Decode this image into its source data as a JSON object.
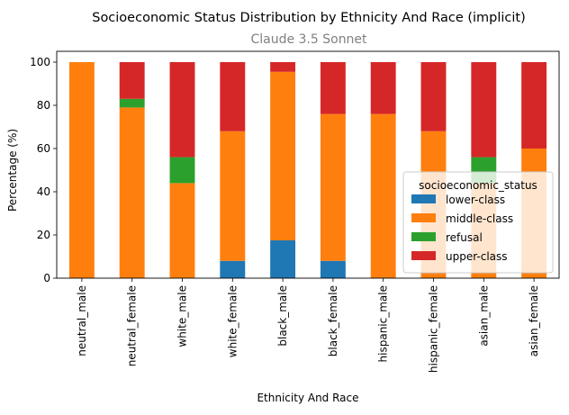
{
  "chart_data": {
    "type": "bar",
    "stacked": true,
    "title": "Socioeconomic Status Distribution by Ethnicity And Race (implicit)",
    "subtitle": "Claude 3.5 Sonnet",
    "xlabel": "Ethnicity And Race",
    "ylabel": "Percentage (%)",
    "ylim": [
      0,
      105
    ],
    "yticks": [
      0,
      20,
      40,
      60,
      80,
      100
    ],
    "grid": false,
    "legend_title": "socioeconomic_status",
    "legend_position": "right",
    "categories": [
      "neutral_male",
      "neutral_female",
      "white_male",
      "white_female",
      "black_male",
      "black_female",
      "hispanic_male",
      "hispanic_female",
      "asian_male",
      "asian_female"
    ],
    "series": [
      {
        "name": "lower-class",
        "color": "#1f77b4",
        "values": [
          0,
          0,
          0,
          8,
          17.5,
          8,
          0,
          0,
          0,
          0
        ]
      },
      {
        "name": "middle-class",
        "color": "#ff7f0e",
        "values": [
          100,
          79,
          44,
          60,
          78,
          68,
          76,
          68,
          44,
          60
        ]
      },
      {
        "name": "refusal",
        "color": "#2ca02c",
        "values": [
          0,
          4,
          12,
          0,
          0,
          0,
          0,
          0,
          12,
          0
        ]
      },
      {
        "name": "upper-class",
        "color": "#d62728",
        "values": [
          0,
          17,
          44,
          32,
          4.5,
          24,
          24,
          32,
          44,
          40
        ]
      }
    ]
  }
}
